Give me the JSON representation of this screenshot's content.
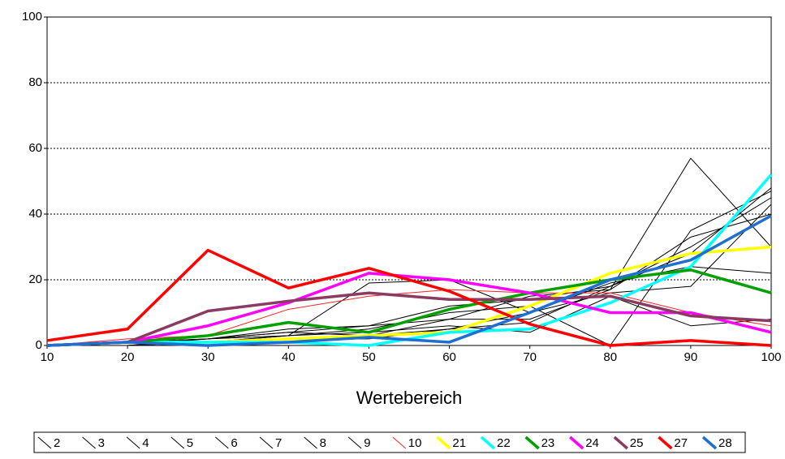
{
  "chart_data": {
    "type": "line",
    "xlabel": "Wertebereich",
    "x": [
      10,
      20,
      30,
      40,
      50,
      60,
      70,
      80,
      90,
      100
    ],
    "xlim": [
      10,
      100
    ],
    "xticks": [
      10,
      20,
      30,
      40,
      50,
      60,
      70,
      80,
      90,
      100
    ],
    "ylim": [
      0,
      100
    ],
    "yticks": [
      0,
      20,
      40,
      60,
      80,
      100
    ],
    "grid": true,
    "legend": "bottom",
    "series": [
      {
        "name": "2",
        "color": "#000000",
        "linewidth": 1,
        "values": [
          0,
          0,
          1,
          2,
          3,
          8,
          15,
          17,
          57,
          30
        ]
      },
      {
        "name": "3",
        "color": "#000000",
        "linewidth": 1,
        "values": [
          0,
          0,
          1,
          3,
          5,
          10,
          12,
          0,
          35,
          47
        ]
      },
      {
        "name": "4",
        "color": "#000000",
        "linewidth": 1,
        "values": [
          0,
          1,
          2,
          4,
          6,
          12,
          14,
          18,
          30,
          45
        ]
      },
      {
        "name": "5",
        "color": "#000000",
        "linewidth": 1,
        "values": [
          0,
          0,
          1,
          2,
          2,
          5,
          10,
          16,
          18,
          43
        ]
      },
      {
        "name": "6",
        "color": "#000000",
        "linewidth": 1,
        "values": [
          0,
          1,
          2,
          3,
          19,
          20,
          10,
          19,
          24,
          22
        ]
      },
      {
        "name": "7",
        "color": "#000000",
        "linewidth": 1,
        "values": [
          0,
          0,
          2,
          5,
          6,
          8,
          8,
          17,
          33,
          40
        ]
      },
      {
        "name": "8",
        "color": "#000000",
        "linewidth": 1,
        "values": [
          0,
          0,
          1,
          3,
          4,
          6,
          4,
          15,
          6,
          8
        ]
      },
      {
        "name": "9",
        "color": "#000000",
        "linewidth": 1,
        "values": [
          0,
          1,
          2,
          4,
          3,
          5,
          7,
          18,
          28,
          48
        ]
      },
      {
        "name": "10",
        "color": "#ff2020",
        "linewidth": 1,
        "values": [
          0,
          2,
          3,
          11,
          15,
          17,
          16,
          16,
          10,
          6
        ]
      },
      {
        "name": "21",
        "color": "#ffff00",
        "linewidth": 3.5,
        "values": [
          0,
          1,
          1,
          2,
          3,
          4,
          12,
          22,
          28,
          30
        ]
      },
      {
        "name": "22",
        "color": "#00ffff",
        "linewidth": 3.5,
        "values": [
          0,
          1,
          1,
          1,
          0,
          4,
          5,
          13,
          24,
          52
        ]
      },
      {
        "name": "23",
        "color": "#00a000",
        "linewidth": 3.5,
        "values": [
          0,
          1,
          3,
          7,
          4,
          11,
          16,
          20,
          23,
          16
        ]
      },
      {
        "name": "24",
        "color": "#ff00ff",
        "linewidth": 3.5,
        "values": [
          0,
          1,
          6,
          13,
          22,
          20,
          16,
          10,
          10,
          4
        ]
      },
      {
        "name": "25",
        "color": "#8b3a62",
        "linewidth": 3.5,
        "values": [
          0,
          1,
          10.5,
          13.5,
          16,
          14,
          14,
          15,
          9,
          7.5
        ]
      },
      {
        "name": "27",
        "color": "#ff0000",
        "linewidth": 3.5,
        "values": [
          1.5,
          5,
          29,
          17.5,
          23.5,
          16.5,
          6.5,
          0,
          1.5,
          0
        ]
      },
      {
        "name": "28",
        "color": "#1e6fd0",
        "linewidth": 3.5,
        "values": [
          0,
          1,
          0,
          1,
          2.5,
          1,
          10,
          20,
          26,
          39.5
        ]
      }
    ]
  }
}
